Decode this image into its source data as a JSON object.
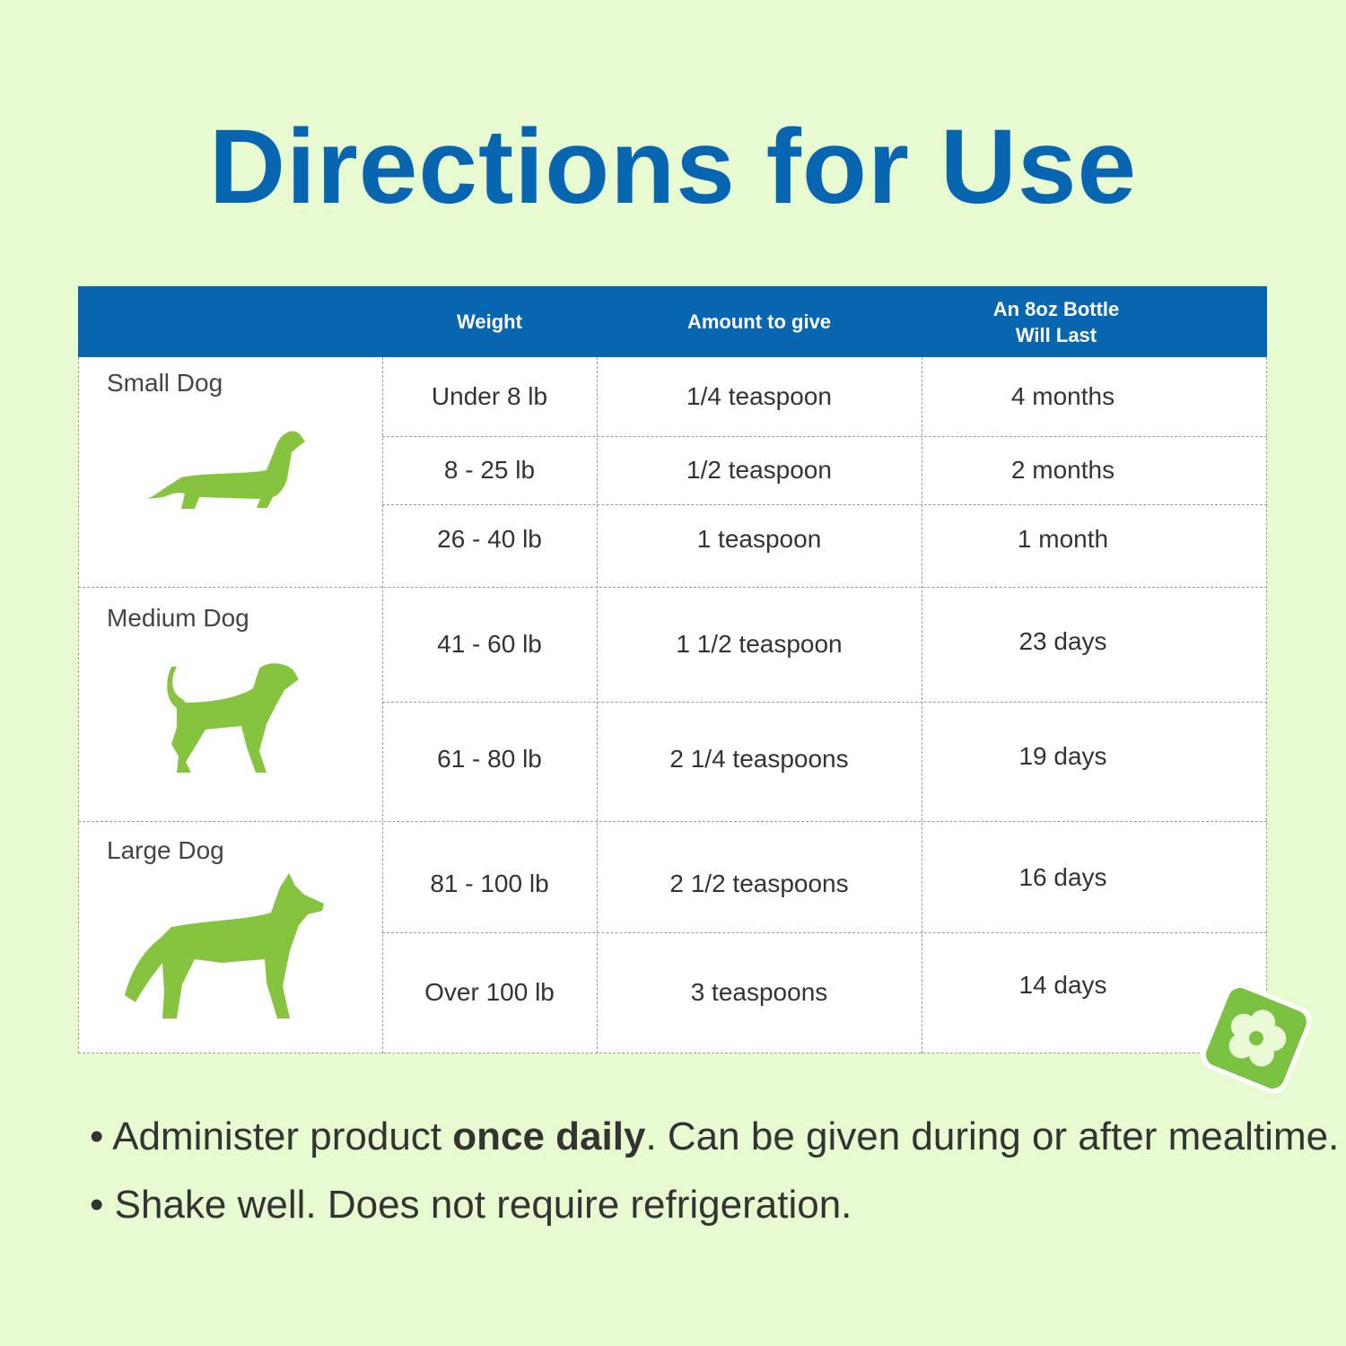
{
  "title": "Directions for Use",
  "header": {
    "columns": [
      "",
      "Weight",
      "Amount to give",
      "An 8oz Bottle Will Last"
    ],
    "bottle_line1": "An 8oz Bottle",
    "bottle_line2": "Will Last"
  },
  "groups": [
    {
      "label": "Small Dog",
      "icon": "dachshund-icon",
      "rows": [
        {
          "weight": "Under 8 lb",
          "amount": "1/4 teaspoon",
          "lasts": "4 months"
        },
        {
          "weight": "8 - 25 lb",
          "amount": "1/2 teaspoon",
          "lasts": "2 months"
        },
        {
          "weight": "26 - 40 lb",
          "amount": "1 teaspoon",
          "lasts": "1 month"
        }
      ]
    },
    {
      "label": "Medium Dog",
      "icon": "beagle-icon",
      "rows": [
        {
          "weight": "41 - 60 lb",
          "amount": "1 1/2 teaspoon",
          "lasts": "23 days"
        },
        {
          "weight": "61 - 80 lb",
          "amount": "2 1/4 teaspoons",
          "lasts": "19 days"
        }
      ]
    },
    {
      "label": "Large Dog",
      "icon": "husky-icon",
      "rows": [
        {
          "weight": "81 - 100 lb",
          "amount": "2 1/2 teaspoons",
          "lasts": "16 days"
        },
        {
          "weight": "Over 100 lb",
          "amount": "3 teaspoons",
          "lasts": "14 days"
        }
      ]
    }
  ],
  "notes": {
    "line1_pre": "Administer product ",
    "line1_bold": "once daily",
    "line1_post": ". Can be given during or after mealtime.",
    "line2": "Shake well. Does not require refrigeration."
  },
  "colors": {
    "brand_blue": "#0866b0",
    "dog_green": "#86c440",
    "background": "#e8fbd0"
  },
  "badge_icon": "flower-icon"
}
